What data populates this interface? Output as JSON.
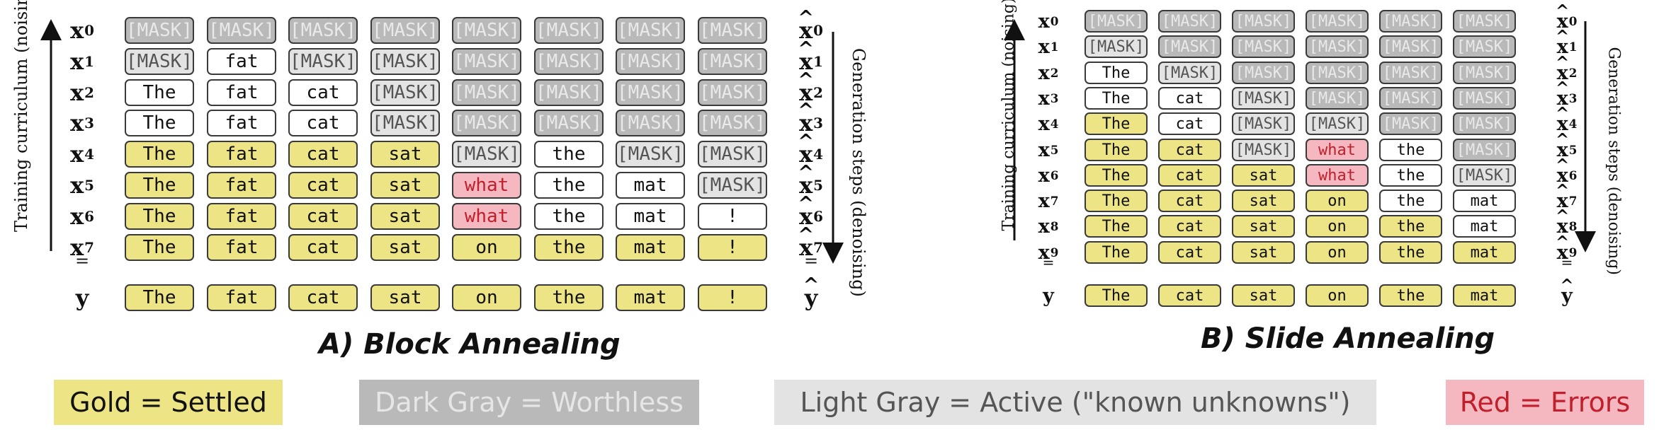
{
  "panel_a": {
    "title": "A) Block Annealing",
    "left_axis_label": "Training curriculum (noising)",
    "right_axis_label": "Generation steps (denoising)",
    "rows": [
      {
        "label": "x",
        "sub": "0",
        "hat_label": "x",
        "hat_sub": "0",
        "cells": [
          [
            "[MASK]",
            "dark"
          ],
          [
            "[MASK]",
            "dark"
          ],
          [
            "[MASK]",
            "dark"
          ],
          [
            "[MASK]",
            "dark"
          ],
          [
            "[MASK]",
            "dark"
          ],
          [
            "[MASK]",
            "dark"
          ],
          [
            "[MASK]",
            "dark"
          ],
          [
            "[MASK]",
            "dark"
          ]
        ]
      },
      {
        "label": "x",
        "sub": "1",
        "hat_label": "x",
        "hat_sub": "1",
        "cells": [
          [
            "[MASK]",
            "light"
          ],
          [
            "fat",
            "white"
          ],
          [
            "[MASK]",
            "light"
          ],
          [
            "[MASK]",
            "light"
          ],
          [
            "[MASK]",
            "dark"
          ],
          [
            "[MASK]",
            "dark"
          ],
          [
            "[MASK]",
            "dark"
          ],
          [
            "[MASK]",
            "dark"
          ]
        ]
      },
      {
        "label": "x",
        "sub": "2",
        "hat_label": "x",
        "hat_sub": "2",
        "cells": [
          [
            "The",
            "white"
          ],
          [
            "fat",
            "white"
          ],
          [
            "cat",
            "white"
          ],
          [
            "[MASK]",
            "light"
          ],
          [
            "[MASK]",
            "dark"
          ],
          [
            "[MASK]",
            "dark"
          ],
          [
            "[MASK]",
            "dark"
          ],
          [
            "[MASK]",
            "dark"
          ]
        ]
      },
      {
        "label": "x",
        "sub": "3",
        "hat_label": "x",
        "hat_sub": "3",
        "cells": [
          [
            "The",
            "white"
          ],
          [
            "fat",
            "white"
          ],
          [
            "cat",
            "white"
          ],
          [
            "[MASK]",
            "light"
          ],
          [
            "[MASK]",
            "dark"
          ],
          [
            "[MASK]",
            "dark"
          ],
          [
            "[MASK]",
            "dark"
          ],
          [
            "[MASK]",
            "dark"
          ]
        ]
      },
      {
        "label": "x",
        "sub": "4",
        "hat_label": "x",
        "hat_sub": "4",
        "cells": [
          [
            "The",
            "gold"
          ],
          [
            "fat",
            "gold"
          ],
          [
            "cat",
            "gold"
          ],
          [
            "sat",
            "gold"
          ],
          [
            "[MASK]",
            "light"
          ],
          [
            "the",
            "white"
          ],
          [
            "[MASK]",
            "light"
          ],
          [
            "[MASK]",
            "light"
          ]
        ]
      },
      {
        "label": "x",
        "sub": "5",
        "hat_label": "x",
        "hat_sub": "5",
        "cells": [
          [
            "The",
            "gold"
          ],
          [
            "fat",
            "gold"
          ],
          [
            "cat",
            "gold"
          ],
          [
            "sat",
            "gold"
          ],
          [
            "what",
            "red"
          ],
          [
            "the",
            "white"
          ],
          [
            "mat",
            "white"
          ],
          [
            "[MASK]",
            "light"
          ]
        ]
      },
      {
        "label": "x",
        "sub": "6",
        "hat_label": "x",
        "hat_sub": "6",
        "cells": [
          [
            "The",
            "gold"
          ],
          [
            "fat",
            "gold"
          ],
          [
            "cat",
            "gold"
          ],
          [
            "sat",
            "gold"
          ],
          [
            "what",
            "red"
          ],
          [
            "the",
            "white"
          ],
          [
            "mat",
            "white"
          ],
          [
            "!",
            "white"
          ]
        ]
      },
      {
        "label": "x",
        "sub": "7",
        "hat_label": "x",
        "hat_sub": "7",
        "cells": [
          [
            "The",
            "gold"
          ],
          [
            "fat",
            "gold"
          ],
          [
            "cat",
            "gold"
          ],
          [
            "sat",
            "gold"
          ],
          [
            "on",
            "gold"
          ],
          [
            "the",
            "gold"
          ],
          [
            "mat",
            "gold"
          ],
          [
            "!",
            "gold"
          ]
        ]
      }
    ],
    "equals": "=",
    "target": {
      "label": "y",
      "hat_label": "y",
      "cells": [
        [
          "The",
          "gold"
        ],
        [
          "fat",
          "gold"
        ],
        [
          "cat",
          "gold"
        ],
        [
          "sat",
          "gold"
        ],
        [
          "on",
          "gold"
        ],
        [
          "the",
          "gold"
        ],
        [
          "mat",
          "gold"
        ],
        [
          "!",
          "gold"
        ]
      ]
    }
  },
  "panel_b": {
    "title": "B) Slide Annealing",
    "left_axis_label": "Training curriculum (noising)",
    "right_axis_label": "Generation steps (denoising)",
    "rows": [
      {
        "label": "x",
        "sub": "0",
        "hat_label": "x",
        "hat_sub": "0",
        "cells": [
          [
            "[MASK]",
            "dark"
          ],
          [
            "[MASK]",
            "dark"
          ],
          [
            "[MASK]",
            "dark"
          ],
          [
            "[MASK]",
            "dark"
          ],
          [
            "[MASK]",
            "dark"
          ],
          [
            "[MASK]",
            "dark"
          ]
        ]
      },
      {
        "label": "x",
        "sub": "1",
        "hat_label": "x",
        "hat_sub": "1",
        "cells": [
          [
            "[MASK]",
            "light"
          ],
          [
            "[MASK]",
            "dark"
          ],
          [
            "[MASK]",
            "dark"
          ],
          [
            "[MASK]",
            "dark"
          ],
          [
            "[MASK]",
            "dark"
          ],
          [
            "[MASK]",
            "dark"
          ]
        ]
      },
      {
        "label": "x",
        "sub": "2",
        "hat_label": "x",
        "hat_sub": "2",
        "cells": [
          [
            "The",
            "white"
          ],
          [
            "[MASK]",
            "light"
          ],
          [
            "[MASK]",
            "dark"
          ],
          [
            "[MASK]",
            "dark"
          ],
          [
            "[MASK]",
            "dark"
          ],
          [
            "[MASK]",
            "dark"
          ]
        ]
      },
      {
        "label": "x",
        "sub": "3",
        "hat_label": "x",
        "hat_sub": "3",
        "cells": [
          [
            "The",
            "white"
          ],
          [
            "cat",
            "white"
          ],
          [
            "[MASK]",
            "light"
          ],
          [
            "[MASK]",
            "dark"
          ],
          [
            "[MASK]",
            "dark"
          ],
          [
            "[MASK]",
            "dark"
          ]
        ]
      },
      {
        "label": "x",
        "sub": "4",
        "hat_label": "x",
        "hat_sub": "4",
        "cells": [
          [
            "The",
            "gold"
          ],
          [
            "cat",
            "white"
          ],
          [
            "[MASK]",
            "light"
          ],
          [
            "[MASK]",
            "light"
          ],
          [
            "[MASK]",
            "dark"
          ],
          [
            "[MASK]",
            "dark"
          ]
        ]
      },
      {
        "label": "x",
        "sub": "5",
        "hat_label": "x",
        "hat_sub": "5",
        "cells": [
          [
            "The",
            "gold"
          ],
          [
            "cat",
            "gold"
          ],
          [
            "[MASK]",
            "light"
          ],
          [
            "what",
            "red"
          ],
          [
            "the",
            "white"
          ],
          [
            "[MASK]",
            "dark"
          ]
        ]
      },
      {
        "label": "x",
        "sub": "6",
        "hat_label": "x",
        "hat_sub": "6",
        "cells": [
          [
            "The",
            "gold"
          ],
          [
            "cat",
            "gold"
          ],
          [
            "sat",
            "gold"
          ],
          [
            "what",
            "red"
          ],
          [
            "the",
            "white"
          ],
          [
            "[MASK]",
            "light"
          ]
        ]
      },
      {
        "label": "x",
        "sub": "7",
        "hat_label": "x",
        "hat_sub": "7",
        "cells": [
          [
            "The",
            "gold"
          ],
          [
            "cat",
            "gold"
          ],
          [
            "sat",
            "gold"
          ],
          [
            "on",
            "gold"
          ],
          [
            "the",
            "white"
          ],
          [
            "mat",
            "white"
          ]
        ]
      },
      {
        "label": "x",
        "sub": "8",
        "hat_label": "x",
        "hat_sub": "8",
        "cells": [
          [
            "The",
            "gold"
          ],
          [
            "cat",
            "gold"
          ],
          [
            "sat",
            "gold"
          ],
          [
            "on",
            "gold"
          ],
          [
            "the",
            "gold"
          ],
          [
            "mat",
            "white"
          ]
        ]
      },
      {
        "label": "x",
        "sub": "9",
        "hat_label": "x",
        "hat_sub": "9",
        "cells": [
          [
            "The",
            "gold"
          ],
          [
            "cat",
            "gold"
          ],
          [
            "sat",
            "gold"
          ],
          [
            "on",
            "gold"
          ],
          [
            "the",
            "gold"
          ],
          [
            "mat",
            "gold"
          ]
        ]
      }
    ],
    "equals": "=",
    "target": {
      "label": "y",
      "hat_label": "y",
      "cells": [
        [
          "The",
          "gold"
        ],
        [
          "cat",
          "gold"
        ],
        [
          "sat",
          "gold"
        ],
        [
          "on",
          "gold"
        ],
        [
          "the",
          "gold"
        ],
        [
          "mat",
          "gold"
        ]
      ]
    }
  },
  "legend": [
    {
      "text": "Gold = Settled",
      "bg": "#ede585",
      "fg": "#111111"
    },
    {
      "text": "Dark Gray = Worthless",
      "bg": "#b9b9b9",
      "fg": "#e6e6e6"
    },
    {
      "text": "Light Gray = Active (\"known unknowns\")",
      "bg": "#e3e3e3",
      "fg": "#555555"
    },
    {
      "text": "Red = Errors",
      "bg": "#f6b8c0",
      "fg": "#c0202c"
    }
  ],
  "colors": {
    "gold": "#ede585",
    "dark_gray": "#b9b9b9",
    "light_gray": "#e3e3e3",
    "red": "#f6b8c0",
    "white": "#ffffff"
  }
}
